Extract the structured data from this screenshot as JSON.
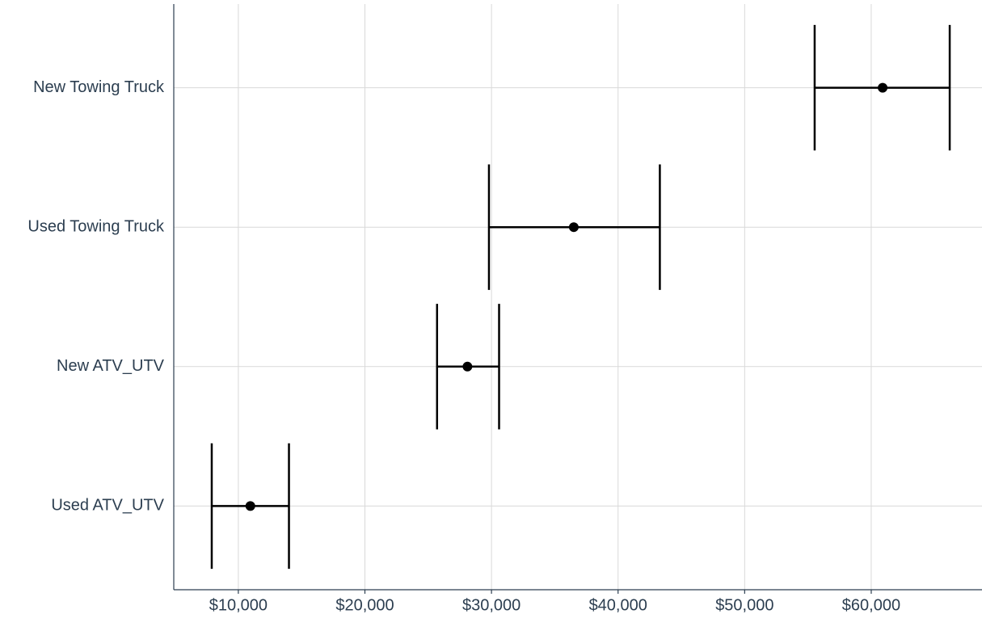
{
  "chart_data": {
    "type": "errorbar",
    "categories": [
      "Used ATV_UTV",
      "New ATV_UTV",
      "Used Towing Truck",
      "New Towing Truck"
    ],
    "values": [
      10950,
      28100,
      36500,
      60900
    ],
    "lower": [
      7900,
      25700,
      29800,
      55530
    ],
    "upper": [
      14000,
      30600,
      43300,
      66200
    ],
    "color": "#000000",
    "xlim": [
      4900,
      68750
    ],
    "xticks": [
      {
        "value": 10000,
        "label": "$10,000"
      },
      {
        "value": 20000,
        "label": "$20,000"
      },
      {
        "value": 30000,
        "label": "$30,000"
      },
      {
        "value": 40000,
        "label": "$40,000"
      },
      {
        "value": 50000,
        "label": "$50,000"
      },
      {
        "value": 60000,
        "label": "$60,000"
      }
    ],
    "grid": true
  }
}
